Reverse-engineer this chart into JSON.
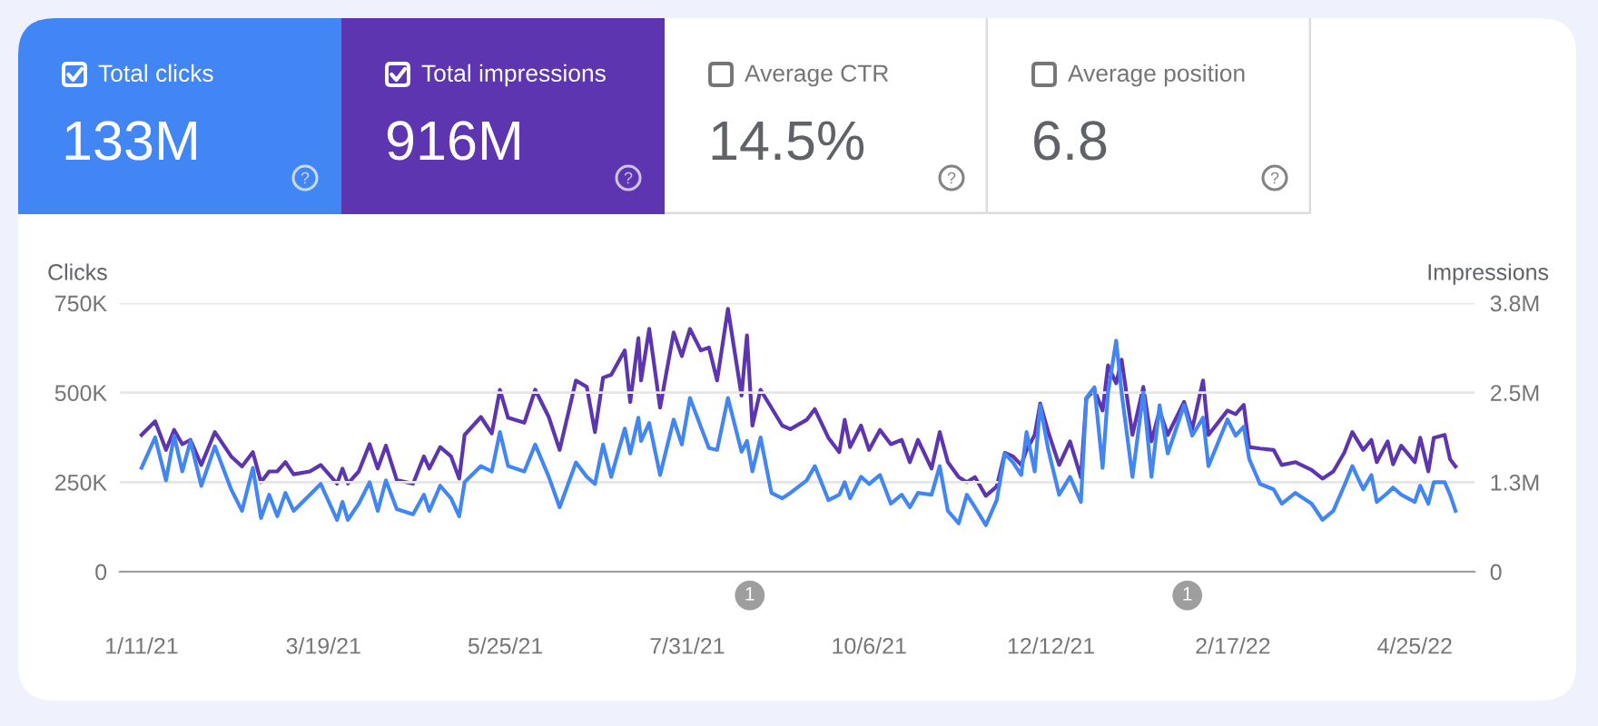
{
  "chart_data": [
    {
      "type": "other",
      "title": "Total clicks",
      "annotations": [
        "133M"
      ],
      "color": "#4285f4"
    },
    {
      "type": "other",
      "title": "Total impressions",
      "annotations": [
        "916M"
      ],
      "color": "#5e35b1"
    },
    {
      "type": "other",
      "title": "Average CTR",
      "annotations": [
        "14.5%"
      ]
    },
    {
      "type": "other",
      "title": "Average position",
      "annotations": [
        "6.8"
      ]
    },
    {
      "type": "line",
      "ylabel": "Clicks",
      "y2label": "Impressions",
      "marker": "none",
      "line_style": "solid",
      "grid": "y",
      "xlim": [
        "2021-01-03",
        "2022-05-17"
      ],
      "xticks": [
        {
          "value": "2021-01-11",
          "label": "1/11/21"
        },
        {
          "value": "2021-03-19",
          "label": "3/19/21"
        },
        {
          "value": "2021-05-25",
          "label": "5/25/21"
        },
        {
          "value": "2021-07-31",
          "label": "7/31/21"
        },
        {
          "value": "2021-10-06",
          "label": "10/6/21"
        },
        {
          "value": "2021-12-12",
          "label": "12/12/21"
        },
        {
          "value": "2022-02-17",
          "label": "2/17/22"
        },
        {
          "value": "2022-04-25",
          "label": "4/25/22"
        }
      ],
      "ylim": [
        0,
        750000
      ],
      "yticks": [
        0,
        {
          "value": 250000,
          "label": "250K"
        },
        {
          "value": 500000,
          "label": "500K"
        },
        {
          "value": 750000,
          "label": "750K"
        }
      ],
      "y2lim": [
        0,
        3750000
      ],
      "y2ticks": [
        0,
        {
          "value": 1250000,
          "label": "1.3M"
        },
        {
          "value": 2500000,
          "label": "2.5M"
        },
        {
          "value": 3750000,
          "label": "3.8M"
        }
      ],
      "annotations": [
        "1",
        "1"
      ],
      "x": [
        "2021-01-11",
        "2021-01-16",
        "2021-01-20",
        "2021-01-23",
        "2021-01-26",
        "2021-01-29",
        "2021-02-02",
        "2021-02-07",
        "2021-02-13",
        "2021-02-17",
        "2021-02-21",
        "2021-02-24",
        "2021-02-27",
        "2021-03-02",
        "2021-03-05",
        "2021-03-08",
        "2021-03-14",
        "2021-03-18",
        "2021-03-24",
        "2021-03-26",
        "2021-03-28",
        "2021-04-01",
        "2021-04-05",
        "2021-04-08",
        "2021-04-11",
        "2021-04-15",
        "2021-04-21",
        "2021-04-25",
        "2021-04-27",
        "2021-05-01",
        "2021-05-05",
        "2021-05-08",
        "2021-05-10",
        "2021-05-16",
        "2021-05-20",
        "2021-05-23",
        "2021-05-26",
        "2021-06-01",
        "2021-06-05",
        "2021-06-10",
        "2021-06-14",
        "2021-06-20",
        "2021-06-24",
        "2021-06-27",
        "2021-06-30",
        "2021-07-03",
        "2021-07-08",
        "2021-07-10",
        "2021-07-13",
        "2021-07-14",
        "2021-07-17",
        "2021-07-21",
        "2021-07-26",
        "2021-07-29",
        "2021-08-01",
        "2021-08-05",
        "2021-08-08",
        "2021-08-11",
        "2021-08-15",
        "2021-08-20",
        "2021-08-22",
        "2021-08-24",
        "2021-08-27",
        "2021-08-31",
        "2021-09-04",
        "2021-09-07",
        "2021-09-13",
        "2021-09-16",
        "2021-09-21",
        "2021-09-25",
        "2021-09-27",
        "2021-09-29",
        "2021-10-03",
        "2021-10-06",
        "2021-10-10",
        "2021-10-14",
        "2021-10-18",
        "2021-10-21",
        "2021-10-24",
        "2021-10-29",
        "2021-11-01",
        "2021-11-04",
        "2021-11-08",
        "2021-11-11",
        "2021-11-14",
        "2021-11-18",
        "2021-11-22",
        "2021-11-25",
        "2021-11-28",
        "2021-12-01",
        "2021-12-03",
        "2021-12-06",
        "2021-12-08",
        "2021-12-11",
        "2021-12-15",
        "2021-12-19",
        "2021-12-23",
        "2021-12-25",
        "2021-12-28",
        "2021-12-31",
        "2022-01-02",
        "2022-01-05",
        "2022-01-07",
        "2022-01-11",
        "2022-01-15",
        "2022-01-18",
        "2022-01-21",
        "2022-01-24",
        "2022-01-30",
        "2022-02-02",
        "2022-02-06",
        "2022-02-08",
        "2022-02-15",
        "2022-02-18",
        "2022-02-21",
        "2022-02-23",
        "2022-02-27",
        "2022-03-04",
        "2022-03-07",
        "2022-03-12",
        "2022-03-18",
        "2022-03-22",
        "2022-03-26",
        "2022-03-30",
        "2022-04-02",
        "2022-04-06",
        "2022-04-09",
        "2022-04-11",
        "2022-04-15",
        "2022-04-17",
        "2022-04-20",
        "2022-04-25",
        "2022-04-27",
        "2022-04-30",
        "2022-05-02",
        "2022-05-06",
        "2022-05-08",
        "2022-05-10"
      ],
      "series": [
        {
          "color": "#4285f4",
          "values": [
            290000,
            375000,
            255000,
            380000,
            280000,
            365000,
            240000,
            350000,
            230000,
            170000,
            290000,
            150000,
            215000,
            155000,
            220000,
            170000,
            215000,
            245000,
            145000,
            195000,
            145000,
            190000,
            250000,
            170000,
            255000,
            175000,
            160000,
            215000,
            170000,
            240000,
            205000,
            155000,
            250000,
            295000,
            280000,
            390000,
            295000,
            280000,
            355000,
            265000,
            180000,
            305000,
            265000,
            245000,
            355000,
            265000,
            400000,
            330000,
            430000,
            365000,
            415000,
            270000,
            425000,
            355000,
            485000,
            405000,
            345000,
            340000,
            485000,
            335000,
            365000,
            280000,
            375000,
            220000,
            205000,
            220000,
            255000,
            295000,
            200000,
            215000,
            250000,
            205000,
            265000,
            245000,
            270000,
            190000,
            215000,
            180000,
            220000,
            215000,
            295000,
            170000,
            135000,
            215000,
            180000,
            130000,
            200000,
            330000,
            305000,
            270000,
            390000,
            280000,
            465000,
            340000,
            215000,
            265000,
            195000,
            485000,
            515000,
            290000,
            500000,
            645000,
            500000,
            265000,
            500000,
            265000,
            465000,
            330000,
            465000,
            380000,
            430000,
            295000,
            425000,
            380000,
            405000,
            315000,
            245000,
            230000,
            190000,
            220000,
            190000,
            145000,
            170000,
            240000,
            295000,
            230000,
            270000,
            195000,
            220000,
            235000,
            215000,
            195000,
            240000,
            190000,
            250000,
            250000,
            215000,
            170000
          ]
        },
        {
          "color": "#5e35b1",
          "axis": "y2",
          "values": [
            1910000,
            2100000,
            1700000,
            1980000,
            1780000,
            1840000,
            1490000,
            1950000,
            1610000,
            1470000,
            1670000,
            1250000,
            1400000,
            1400000,
            1530000,
            1360000,
            1400000,
            1490000,
            1230000,
            1440000,
            1230000,
            1400000,
            1780000,
            1440000,
            1760000,
            1280000,
            1230000,
            1610000,
            1440000,
            1740000,
            1610000,
            1300000,
            1910000,
            2160000,
            1930000,
            2540000,
            2150000,
            2080000,
            2540000,
            2160000,
            1700000,
            2670000,
            2580000,
            1950000,
            2710000,
            2750000,
            3090000,
            2370000,
            3260000,
            2670000,
            3390000,
            2290000,
            3340000,
            3010000,
            3390000,
            3090000,
            3130000,
            2670000,
            3670000,
            2460000,
            3300000,
            2040000,
            2540000,
            2290000,
            2040000,
            1990000,
            2120000,
            2270000,
            1870000,
            1670000,
            2120000,
            1740000,
            2040000,
            1700000,
            1980000,
            1780000,
            1840000,
            1530000,
            1840000,
            1440000,
            1950000,
            1530000,
            1320000,
            1250000,
            1320000,
            1060000,
            1190000,
            1660000,
            1610000,
            1490000,
            1700000,
            1910000,
            2350000,
            1950000,
            1490000,
            1820000,
            1320000,
            2420000,
            2540000,
            2250000,
            2880000,
            2630000,
            2960000,
            1910000,
            2580000,
            1820000,
            2250000,
            1910000,
            2370000,
            1990000,
            2670000,
            1910000,
            2250000,
            2200000,
            2330000,
            1740000,
            1720000,
            1700000,
            1490000,
            1530000,
            1420000,
            1300000,
            1400000,
            1660000,
            1950000,
            1700000,
            1840000,
            1530000,
            1820000,
            1500000,
            1760000,
            1530000,
            1870000,
            1400000,
            1870000,
            1910000,
            1570000,
            1470000
          ]
        }
      ]
    }
  ]
}
